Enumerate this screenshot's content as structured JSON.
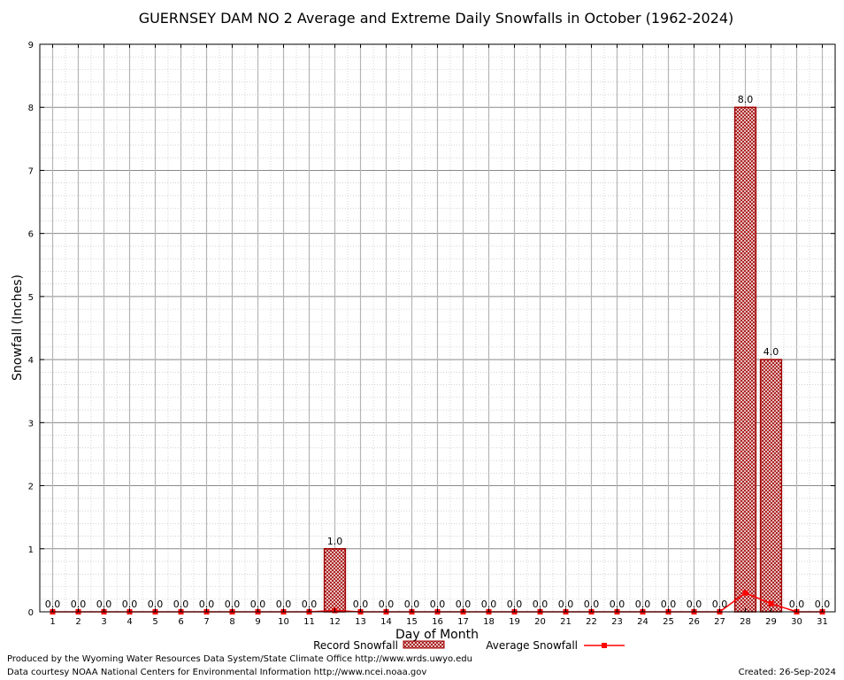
{
  "chart_data": {
    "type": "bar",
    "title": "GUERNSEY DAM NO 2 Average and Extreme Daily Snowfalls in October (1962-2024)",
    "xlabel": "Day of Month",
    "ylabel": "Snowfall (Inches)",
    "ylim": [
      0,
      9
    ],
    "yticks": [
      "0",
      "1",
      "2",
      "3",
      "4",
      "5",
      "6",
      "7",
      "8",
      "9"
    ],
    "grid": true,
    "legend_position": "bottom",
    "categories": [
      "1",
      "2",
      "3",
      "4",
      "5",
      "6",
      "7",
      "8",
      "9",
      "10",
      "11",
      "12",
      "13",
      "14",
      "15",
      "16",
      "17",
      "18",
      "19",
      "20",
      "21",
      "22",
      "23",
      "24",
      "25",
      "26",
      "27",
      "28",
      "29",
      "30",
      "31"
    ],
    "series": [
      {
        "name": "Record Snowfall",
        "type": "bar",
        "color": "#a00000",
        "values": [
          0,
          0,
          0,
          0,
          0,
          0,
          0,
          0,
          0,
          0,
          0,
          1.0,
          0,
          0,
          0,
          0,
          0,
          0,
          0,
          0,
          0,
          0,
          0,
          0,
          0,
          0,
          0,
          8.0,
          4.0,
          0,
          0
        ],
        "labels": [
          "0.0",
          "0.0",
          "0.0",
          "0.0",
          "0.0",
          "0.0",
          "0.0",
          "0.0",
          "0.0",
          "0.0",
          "0.0",
          "1.0",
          "0.0",
          "0.0",
          "0.0",
          "0.0",
          "0.0",
          "0.0",
          "0.0",
          "0.0",
          "0.0",
          "0.0",
          "0.0",
          "0.0",
          "0.0",
          "0.0",
          "0.0",
          "8.0",
          "4.0",
          "0.0",
          "0.0"
        ]
      },
      {
        "name": "Average Snowfall",
        "type": "line",
        "color": "#ff0000",
        "values": [
          0,
          0,
          0,
          0,
          0,
          0,
          0,
          0,
          0,
          0,
          0,
          0.02,
          0,
          0,
          0,
          0,
          0,
          0,
          0,
          0,
          0,
          0,
          0,
          0,
          0,
          0,
          0,
          0.3,
          0.13,
          0,
          0
        ]
      }
    ]
  },
  "footer": {
    "produced_by": "Produced by the Wyoming Water Resources Data System/State Climate Office http://www.wrds.uwyo.edu",
    "courtesy": "Data courtesy NOAA National Centers for Environmental Information http://www.ncei.noaa.gov",
    "created": "Created:  26-Sep-2024"
  }
}
